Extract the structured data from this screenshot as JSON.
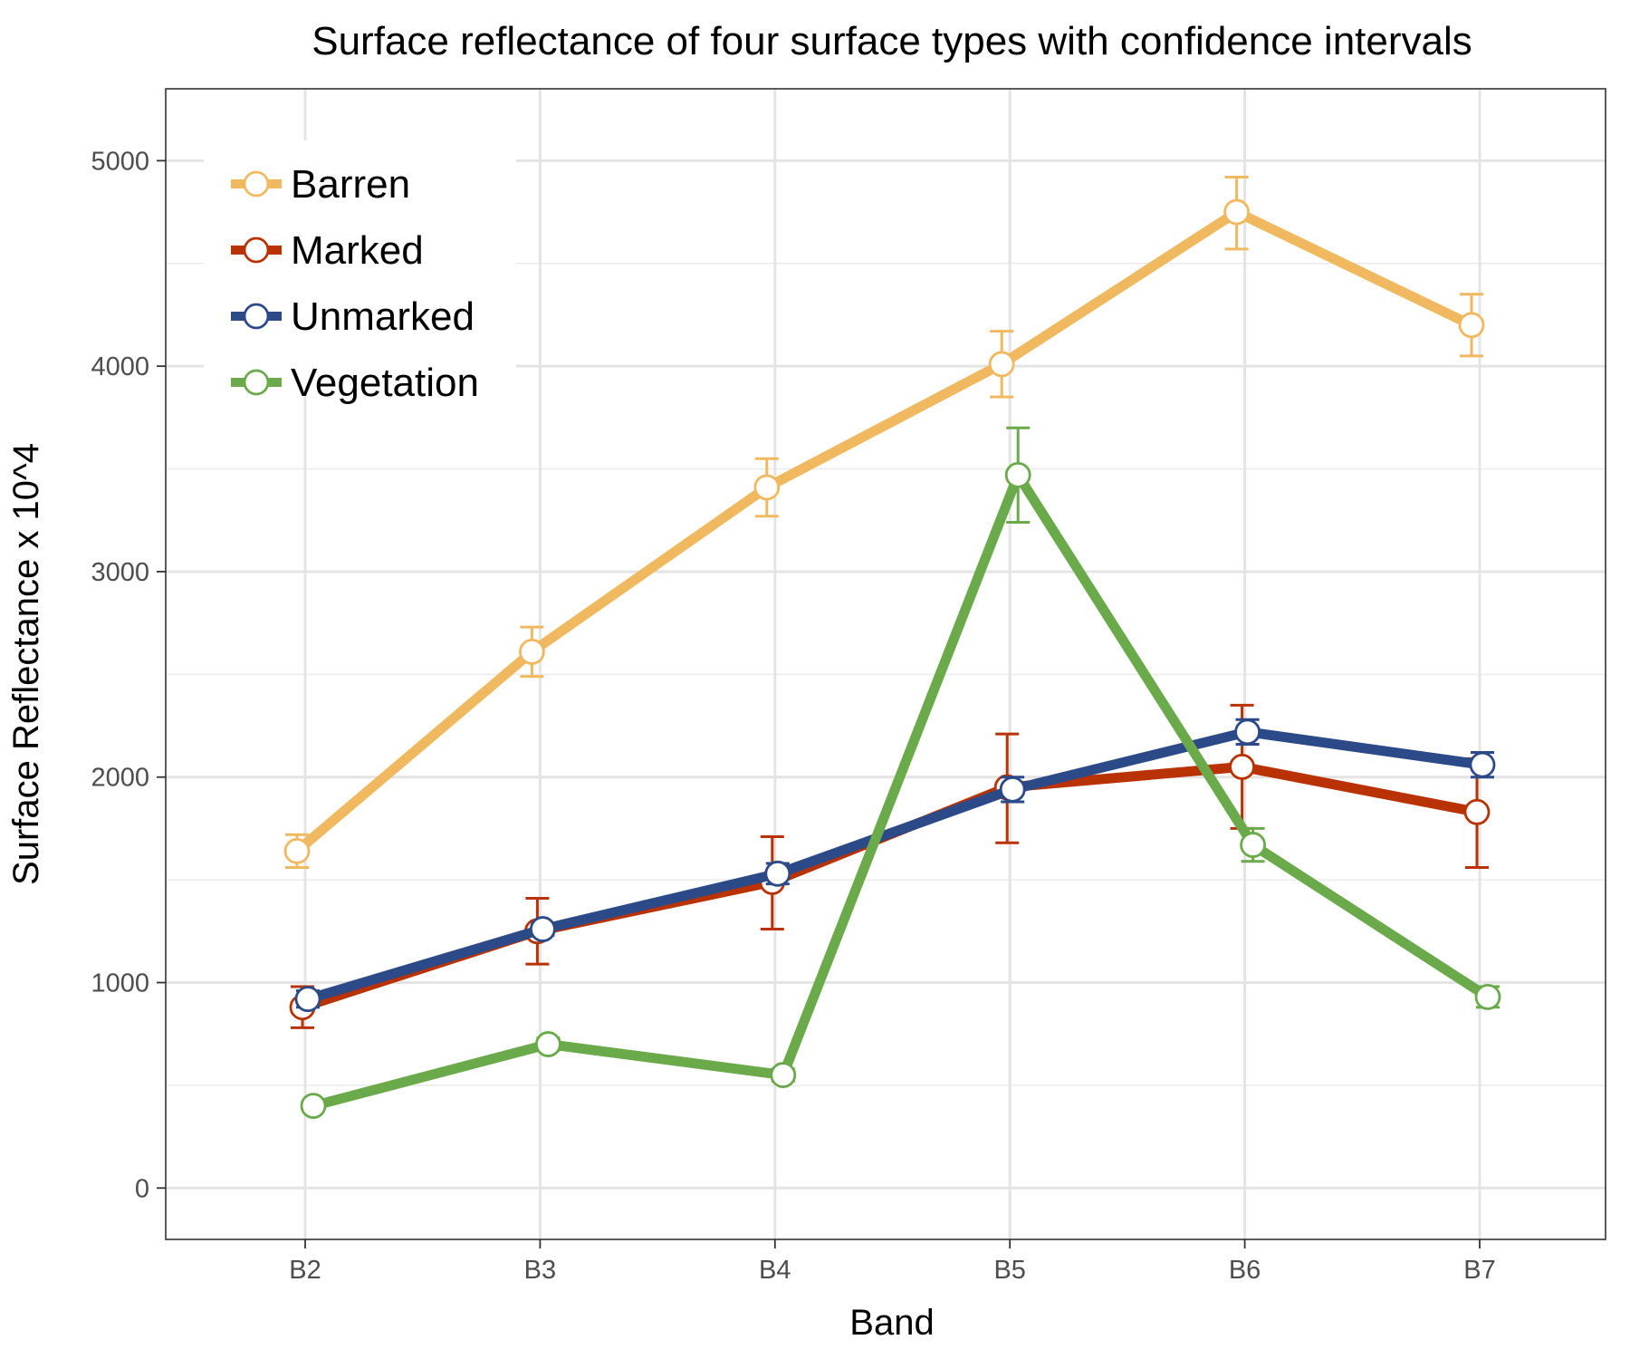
{
  "chart_data": {
    "type": "line",
    "title": "Surface reflectance of four surface types with confidence intervals",
    "xlabel": "Band",
    "ylabel": "Surface Reflectance x 10^4",
    "categories": [
      "B2",
      "B3",
      "B4",
      "B5",
      "B6",
      "B7"
    ],
    "ylim": [
      -250,
      5350
    ],
    "yticks": [
      "0",
      "1000",
      "2000",
      "3000",
      "4000",
      "5000"
    ],
    "grid": true,
    "legend_position": "top-left",
    "series": [
      {
        "name": "Barren",
        "color": "#f0b960",
        "values": [
          1640,
          2610,
          3410,
          4010,
          4750,
          4200
        ],
        "ci_low": [
          1560,
          2490,
          3270,
          3850,
          4570,
          4050
        ],
        "ci_high": [
          1720,
          2730,
          3550,
          4170,
          4920,
          4350
        ]
      },
      {
        "name": "Marked",
        "color": "#b83204",
        "values": [
          880,
          1250,
          1490,
          1950,
          2050,
          1830
        ],
        "ci_low": [
          780,
          1090,
          1260,
          1680,
          1750,
          1560
        ],
        "ci_high": [
          980,
          1410,
          1710,
          2210,
          2350,
          2090
        ]
      },
      {
        "name": "Unmarked",
        "color": "#2c4a88",
        "values": [
          920,
          1260,
          1530,
          1940,
          2220,
          2060
        ],
        "ci_low": [
          880,
          1230,
          1480,
          1880,
          2160,
          2000
        ],
        "ci_high": [
          960,
          1290,
          1580,
          2000,
          2280,
          2120
        ]
      },
      {
        "name": "Vegetation",
        "color": "#6aaa4a",
        "values": [
          400,
          700,
          550,
          3470,
          1670,
          930
        ],
        "ci_low": [
          380,
          670,
          520,
          3240,
          1590,
          880
        ],
        "ci_high": [
          420,
          730,
          580,
          3700,
          1750,
          980
        ]
      }
    ]
  }
}
